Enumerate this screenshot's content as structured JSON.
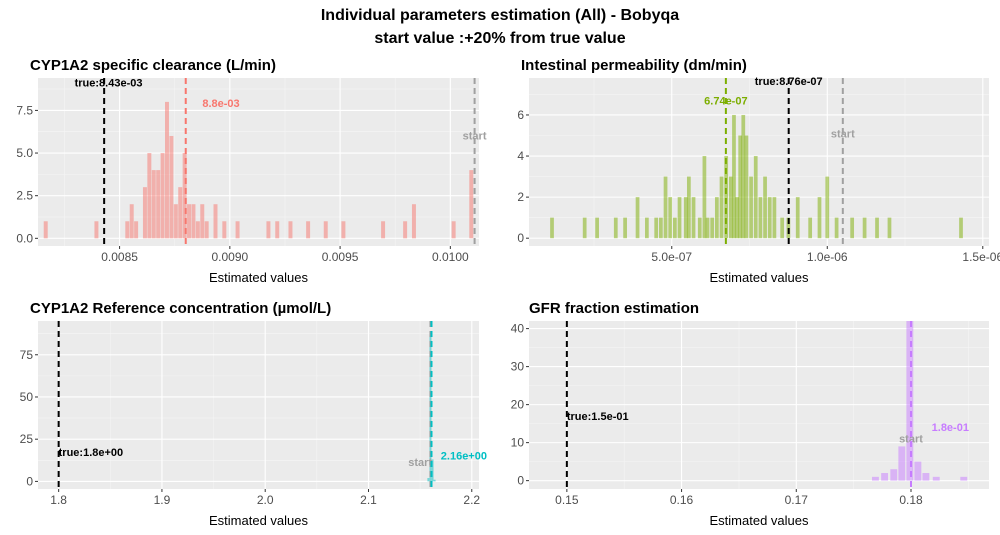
{
  "figure": {
    "title_line1": "Individual parameters estimation (All) - Bobyqa",
    "title_line2": "start value :+20% from true value",
    "title_color": "#000000"
  },
  "chart_data": [
    {
      "type": "histogram",
      "title": "CYP1A2 specific clearance (L/min)",
      "xlabel": "Estimated values",
      "ylabel": "",
      "xlim": [
        0.00813,
        0.01013
      ],
      "ylim": [
        -0.45,
        9.4
      ],
      "xticks": [
        0.0085,
        0.009,
        0.0095,
        0.01
      ],
      "xtick_labels": [
        "0.0085",
        "0.0090",
        "0.0095",
        "0.0100"
      ],
      "yticks": [
        0,
        2.5,
        5,
        7.5
      ],
      "ytick_labels": [
        "0.0",
        "2.5",
        "5.0",
        "7.5"
      ],
      "fill_color": "#f8766d",
      "bar_opacity": 0.5,
      "bins": [
        {
          "x": 0.008165,
          "count": 1
        },
        {
          "x": 0.008395,
          "count": 1
        },
        {
          "x": 0.008535,
          "count": 1
        },
        {
          "x": 0.008555,
          "count": 2
        },
        {
          "x": 0.008575,
          "count": 1
        },
        {
          "x": 0.008615,
          "count": 3
        },
        {
          "x": 0.008635,
          "count": 5
        },
        {
          "x": 0.008655,
          "count": 4
        },
        {
          "x": 0.008675,
          "count": 4
        },
        {
          "x": 0.008695,
          "count": 5
        },
        {
          "x": 0.008715,
          "count": 8
        },
        {
          "x": 0.008735,
          "count": 6
        },
        {
          "x": 0.008755,
          "count": 2
        },
        {
          "x": 0.008775,
          "count": 3
        },
        {
          "x": 0.008795,
          "count": 5
        },
        {
          "x": 0.008815,
          "count": 2
        },
        {
          "x": 0.008835,
          "count": 2
        },
        {
          "x": 0.008855,
          "count": 1
        },
        {
          "x": 0.008875,
          "count": 2
        },
        {
          "x": 0.008895,
          "count": 1
        },
        {
          "x": 0.008935,
          "count": 2
        },
        {
          "x": 0.008975,
          "count": 1
        },
        {
          "x": 0.009035,
          "count": 1
        },
        {
          "x": 0.009175,
          "count": 1
        },
        {
          "x": 0.009215,
          "count": 1
        },
        {
          "x": 0.009275,
          "count": 1
        },
        {
          "x": 0.009355,
          "count": 1
        },
        {
          "x": 0.009435,
          "count": 1
        },
        {
          "x": 0.009515,
          "count": 1
        },
        {
          "x": 0.009695,
          "count": 1
        },
        {
          "x": 0.009795,
          "count": 1
        },
        {
          "x": 0.009835,
          "count": 2
        },
        {
          "x": 0.010015,
          "count": 1
        },
        {
          "x": 0.010095,
          "count": 4
        }
      ],
      "bin_width": 1.8e-05,
      "vlines": [
        {
          "x": 0.00843,
          "color": "#000000",
          "label": "true:8.43e-03",
          "label_x": 0.00845,
          "label_y": 8.9
        },
        {
          "x": 0.0088,
          "color": "#f8766d",
          "label": "8.8e-03",
          "label_x": 0.00896,
          "label_y": 7.7
        },
        {
          "x": 0.01011,
          "color": "#a0a0a0",
          "label": "start",
          "label_x": 0.01011,
          "label_y": 5.8
        }
      ]
    },
    {
      "type": "histogram",
      "title": "Intestinal permeability (dm/min)",
      "xlabel": "Estimated values",
      "ylabel": "",
      "xlim": [
        4.1e-08,
        1.52e-06
      ],
      "ylim": [
        -0.38,
        7.8
      ],
      "xticks": [
        5e-07,
        1e-06,
        1.5e-06
      ],
      "xtick_labels": [
        "5.0e-07",
        "1.0e-06",
        "1.5e-06"
      ],
      "yticks": [
        0,
        2,
        4,
        6
      ],
      "ytick_labels": [
        "0",
        "2",
        "4",
        "6"
      ],
      "fill_color": "#7cae00",
      "bar_opacity": 0.5,
      "bins": [
        {
          "x": 1.15e-07,
          "count": 1
        },
        {
          "x": 2.2e-07,
          "count": 1
        },
        {
          "x": 2.6e-07,
          "count": 1
        },
        {
          "x": 3.2e-07,
          "count": 1
        },
        {
          "x": 3.5e-07,
          "count": 1
        },
        {
          "x": 3.9e-07,
          "count": 2
        },
        {
          "x": 4.2e-07,
          "count": 1
        },
        {
          "x": 4.5e-07,
          "count": 1
        },
        {
          "x": 4.65e-07,
          "count": 1
        },
        {
          "x": 4.8e-07,
          "count": 3
        },
        {
          "x": 4.95e-07,
          "count": 2
        },
        {
          "x": 5.1e-07,
          "count": 1
        },
        {
          "x": 5.25e-07,
          "count": 2
        },
        {
          "x": 5.45e-07,
          "count": 2
        },
        {
          "x": 5.55e-07,
          "count": 3
        },
        {
          "x": 5.7e-07,
          "count": 2
        },
        {
          "x": 5.9e-07,
          "count": 1
        },
        {
          "x": 6.05e-07,
          "count": 4
        },
        {
          "x": 6.15e-07,
          "count": 1
        },
        {
          "x": 6.3e-07,
          "count": 1
        },
        {
          "x": 6.45e-07,
          "count": 2
        },
        {
          "x": 6.6e-07,
          "count": 3
        },
        {
          "x": 6.75e-07,
          "count": 4
        },
        {
          "x": 6.9e-07,
          "count": 3
        },
        {
          "x": 7e-07,
          "count": 6
        },
        {
          "x": 7.1e-07,
          "count": 2
        },
        {
          "x": 7.2e-07,
          "count": 5
        },
        {
          "x": 7.3e-07,
          "count": 6
        },
        {
          "x": 7.4e-07,
          "count": 5
        },
        {
          "x": 7.55e-07,
          "count": 3
        },
        {
          "x": 7.7e-07,
          "count": 4
        },
        {
          "x": 7.85e-07,
          "count": 2
        },
        {
          "x": 8e-07,
          "count": 3
        },
        {
          "x": 8.15e-07,
          "count": 2
        },
        {
          "x": 8.3e-07,
          "count": 2
        },
        {
          "x": 8.55e-07,
          "count": 1
        },
        {
          "x": 8.75e-07,
          "count": 1
        },
        {
          "x": 9.05e-07,
          "count": 2
        },
        {
          "x": 9.45e-07,
          "count": 1
        },
        {
          "x": 9.75e-07,
          "count": 2
        },
        {
          "x": 1e-06,
          "count": 3
        },
        {
          "x": 1.03e-06,
          "count": 1
        },
        {
          "x": 1.08e-06,
          "count": 1
        },
        {
          "x": 1.12e-06,
          "count": 1
        },
        {
          "x": 1.16e-06,
          "count": 1
        },
        {
          "x": 1.2e-06,
          "count": 1
        },
        {
          "x": 1.43e-06,
          "count": 1
        }
      ],
      "bin_width": 1.2e-08,
      "vlines": [
        {
          "x": 6.74e-07,
          "color": "#7cae00",
          "label": "6.74e-07",
          "label_x": 6.74e-07,
          "label_y": 6.5
        },
        {
          "x": 8.76e-07,
          "color": "#000000",
          "label": "true:8.76e-07",
          "label_x": 8.76e-07,
          "label_y": 7.45
        },
        {
          "x": 1.05e-06,
          "color": "#a0a0a0",
          "label": "start",
          "label_x": 1.05e-06,
          "label_y": 4.9
        }
      ]
    },
    {
      "type": "histogram",
      "title": "CYP1A2 Reference concentration (µmol/L)",
      "xlabel": "Estimated values",
      "ylabel": "",
      "xlim": [
        1.78,
        2.207
      ],
      "ylim": [
        -4.5,
        95
      ],
      "xticks": [
        1.8,
        1.9,
        2.0,
        2.1,
        2.2
      ],
      "xtick_labels": [
        "1.8",
        "1.9",
        "2.0",
        "2.1",
        "2.2"
      ],
      "yticks": [
        0,
        25,
        50,
        75
      ],
      "ytick_labels": [
        "0",
        "25",
        "50",
        "75"
      ],
      "fill_color": "#00bfc4",
      "bar_opacity": 0.5,
      "bins": [
        {
          "x": 2.158,
          "count": 2
        },
        {
          "x": 2.16,
          "count": 87
        },
        {
          "x": 2.162,
          "count": 13
        },
        {
          "x": 2.164,
          "count": 1
        }
      ],
      "bin_width": 0.0019,
      "vlines": [
        {
          "x": 1.8,
          "color": "#000000",
          "label": "true:1.8e+00",
          "label_x": 1.8,
          "label_y": 15
        },
        {
          "x": 2.16,
          "color": "#a0a0a0",
          "label": "start",
          "label_x": 2.15,
          "label_y": 9
        },
        {
          "x": 2.161,
          "color": "#00bfc4",
          "label": "2.16e+00",
          "label_x": 2.17,
          "label_y": 13
        }
      ]
    },
    {
      "type": "histogram",
      "title": "GFR fraction estimation",
      "xlabel": "Estimated values",
      "ylabel": "",
      "xlim": [
        0.1467,
        0.1868
      ],
      "ylim": [
        -2.2,
        42
      ],
      "xticks": [
        0.15,
        0.16,
        0.17,
        0.18
      ],
      "xtick_labels": [
        "0.15",
        "0.16",
        "0.17",
        "0.18"
      ],
      "yticks": [
        0,
        10,
        20,
        30,
        40
      ],
      "ytick_labels": [
        "0",
        "10",
        "20",
        "30",
        "40"
      ],
      "fill_color": "#c77cff",
      "bar_opacity": 0.5,
      "bins": [
        {
          "x": 0.1769,
          "count": 1
        },
        {
          "x": 0.1777,
          "count": 2
        },
        {
          "x": 0.1785,
          "count": 3
        },
        {
          "x": 0.1792,
          "count": 9
        },
        {
          "x": 0.1799,
          "count": 42
        },
        {
          "x": 0.1806,
          "count": 5
        },
        {
          "x": 0.1813,
          "count": 2
        },
        {
          "x": 0.1822,
          "count": 1
        },
        {
          "x": 0.1846,
          "count": 1
        }
      ],
      "bin_width": 0.0006,
      "vlines": [
        {
          "x": 0.15,
          "color": "#000000",
          "label": "true:1.5e-01",
          "label_x": 0.15,
          "label_y": 16
        },
        {
          "x": 0.18,
          "color": "#a0a0a0",
          "label": "start",
          "label_x": 0.18,
          "label_y": 10
        },
        {
          "x": 0.18,
          "color": "#c77cff",
          "label": "1.8e-01",
          "label_x": 0.1818,
          "label_y": 13
        }
      ]
    }
  ]
}
